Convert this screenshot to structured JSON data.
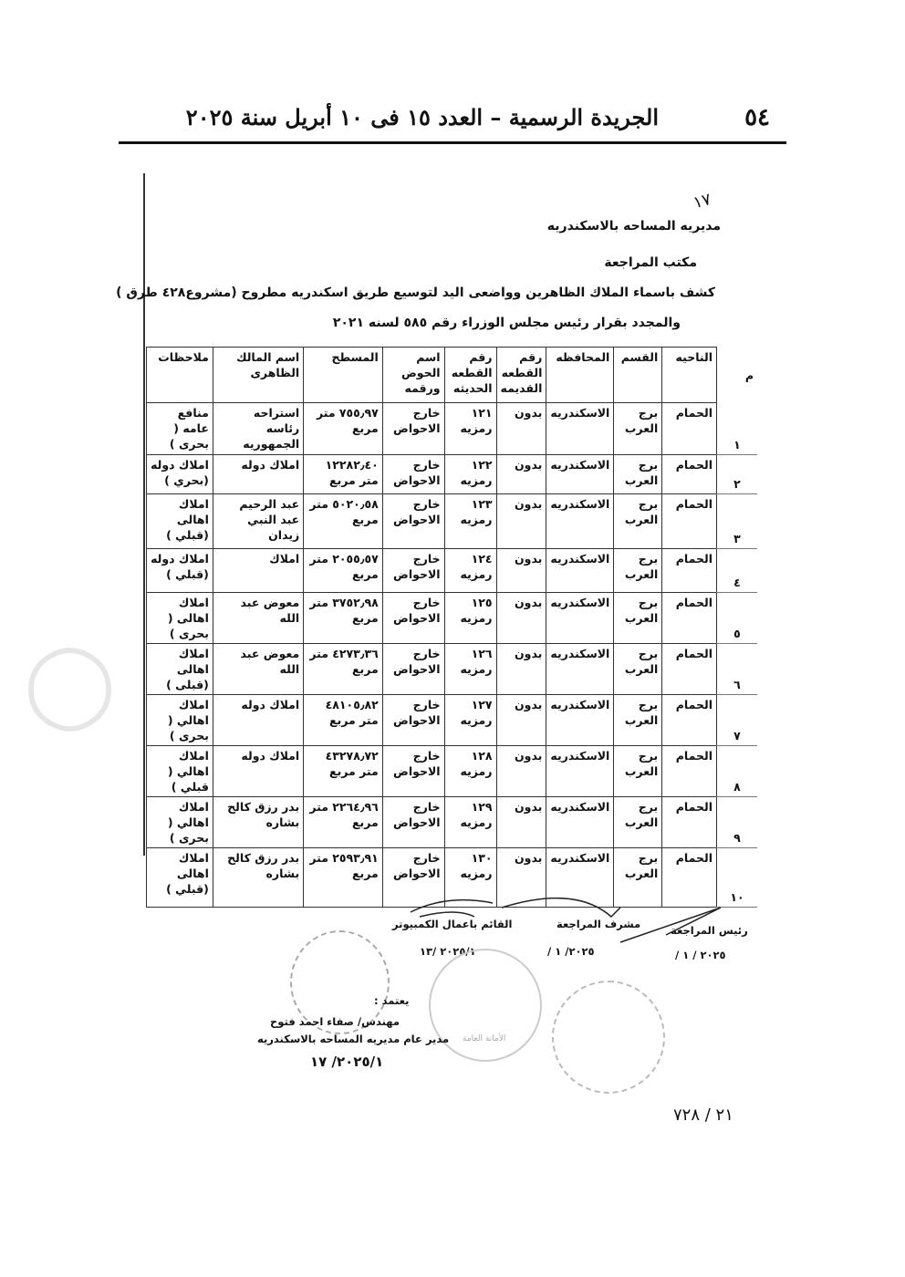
{
  "header": {
    "page_number": "٥٤",
    "gazette_title": "الجريدة الرسمية – العدد ١٥ فى ١٠ أبريل سنة ٢٠٢٥"
  },
  "document": {
    "directorate": "مديريه المساحه بالاسكندريه",
    "office": "مكتب المراجعة",
    "title_line1": "كشف باسماء الملاك الظاهرين وواضعى اليد لتوسيع طريق اسكندريه مطروح (مشروع٤٢٨ طرق )",
    "title_line2": "والمجدد بقرار رئيس مجلس الوزراء رقم ٥٨٥ لسنه ٢٠٢١",
    "top_mark": "١٧"
  },
  "table": {
    "headers": [
      "م",
      "الناحيه",
      "القسم",
      "المحافظه",
      "رقم القطعه القديمه",
      "رقم القطعه الحديثه",
      "اسم الحوض ورقمه",
      "المسطح",
      "اسم المالك الظاهرى",
      "ملاحظات"
    ],
    "rows": [
      [
        "١",
        "الحمام",
        "برج العرب",
        "الاسكندريه",
        "بدون",
        "١٢١ رمزيه",
        "خارج الاحواض",
        "٧٥٥٫٩٧ متر مربع",
        "استراحه رئاسه الجمهوريه",
        "منافع عامه ( بحرى )"
      ],
      [
        "٢",
        "الحمام",
        "برج العرب",
        "الاسكندريه",
        "بدون",
        "١٢٢ رمزيه",
        "خارج الاحواض",
        "١٢٢٨٢٫٤٠ متر مربع",
        "املاك دوله",
        "املاك دوله (بحري )"
      ],
      [
        "٣",
        "الحمام",
        "برج العرب",
        "الاسكندريه",
        "بدون",
        "١٢٣ رمزيه",
        "خارج الاحواض",
        "٥٠٢٠٫٥٨ متر مربع",
        "عبد الرحيم عبد النبي زيدان",
        "املاك اهالى (قبلي )"
      ],
      [
        "٤",
        "الحمام",
        "برج العرب",
        "الاسكندريه",
        "بدون",
        "١٢٤ رمزيه",
        "خارج الاحواض",
        "٢٠٥٥٫٥٧ متر مربع",
        "املاك",
        "املاك دوله (قبلي )"
      ],
      [
        "٥",
        "الحمام",
        "برج العرب",
        "الاسكندريه",
        "بدون",
        "١٢٥ رمزيه",
        "خارج الاحواض",
        "٣٧٥٢٫٩٨ متر مربع",
        "معوض عبد الله",
        "املاك اهالى ( بحرى )"
      ],
      [
        "٦",
        "الحمام",
        "برج العرب",
        "الاسكندريه",
        "بدون",
        "١٢٦ رمزيه",
        "خارج الاحواض",
        "٤٢٧٣٫٣٦ متر مربع",
        "معوض عبد الله",
        "املاك اهالى (قبلى )"
      ],
      [
        "٧",
        "الحمام",
        "برج العرب",
        "الاسكندريه",
        "بدون",
        "١٢٧ رمزيه",
        "خارج الاحواض",
        "٤٨١٠٥٫٨٢ متر مربع",
        "املاك دوله",
        "املاك اهالي ( بحرى )"
      ],
      [
        "٨",
        "الحمام",
        "برج العرب",
        "الاسكندريه",
        "بدون",
        "١٢٨ رمزيه",
        "خارج الاحواض",
        "٤٣٢٧٨٫٧٢ متر مربع",
        "املاك دوله",
        "املاك اهالي ( قبلي )"
      ],
      [
        "٩",
        "الحمام",
        "برج العرب",
        "الاسكندريه",
        "بدون",
        "١٢٩ رمزيه",
        "خارج الاحواض",
        "٢٢٦٤٫٩٦ متر مربع",
        "بدر رزق كالح بشاره",
        "املاك اهالي ( بحرى )"
      ],
      [
        "١٠",
        "الحمام",
        "برج العرب",
        "الاسكندريه",
        "بدون",
        "١٣٠ رمزيه",
        "خارج الاحواض",
        "٢٥٩٣٫٩١ متر مربع",
        "بدر رزق كالح بشاره",
        "املاك اهالى (قبلي )"
      ]
    ]
  },
  "signatures": {
    "head_review": "رئيس المراجعة",
    "head_review_date": "٢٠٢٥ / ١ /",
    "supervisor": "مشرف المراجعة",
    "supervisor_date": "٢٠٢٥/ ١ /",
    "computer_operator": "القائم باعمال الكمبيوتر",
    "computer_operator_date": "٢٠٢٥/١ /١٣",
    "approved": "يعتمد :",
    "engineer": "مهندس/ صفاء احمد فتوح",
    "director": "مدير عام مديريه المساحه بالاسكندريه",
    "director_date": "٢٠٢٥/١/ ١٧",
    "stamp_text": "الأمانة العامة",
    "ref_number": "٢١ / ٧٢٨"
  }
}
